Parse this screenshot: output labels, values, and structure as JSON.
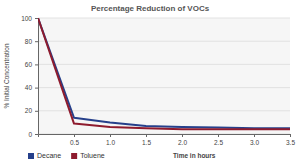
{
  "chart_data": {
    "type": "line",
    "title": "Percentage Reduction of VOCs",
    "x_label": "Time in hours",
    "y_label": "% Initial Concentration",
    "x": [
      0,
      0.5,
      1,
      1.5,
      2,
      2.5,
      3,
      3.5
    ],
    "series": [
      {
        "name": "Decane",
        "color": "#26408b",
        "values": [
          100,
          14,
          10,
          7,
          6,
          5.5,
          5,
          5
        ]
      },
      {
        "name": "Toluene",
        "color": "#8e1b2e",
        "values": [
          100,
          9,
          6,
          5,
          4,
          4,
          4,
          4
        ]
      }
    ],
    "xlim": [
      0,
      3.5
    ],
    "xticks": [
      0.5,
      {
        "value": 1,
        "label": "1.0"
      },
      1.5,
      {
        "value": 2,
        "label": "2.0"
      },
      2.5,
      {
        "value": 3,
        "label": "3.0"
      },
      3.5
    ],
    "ylim": [
      0,
      100
    ],
    "yticks": [
      0,
      20,
      40,
      60,
      80,
      100
    ],
    "grid": true,
    "legend": "bottom"
  }
}
